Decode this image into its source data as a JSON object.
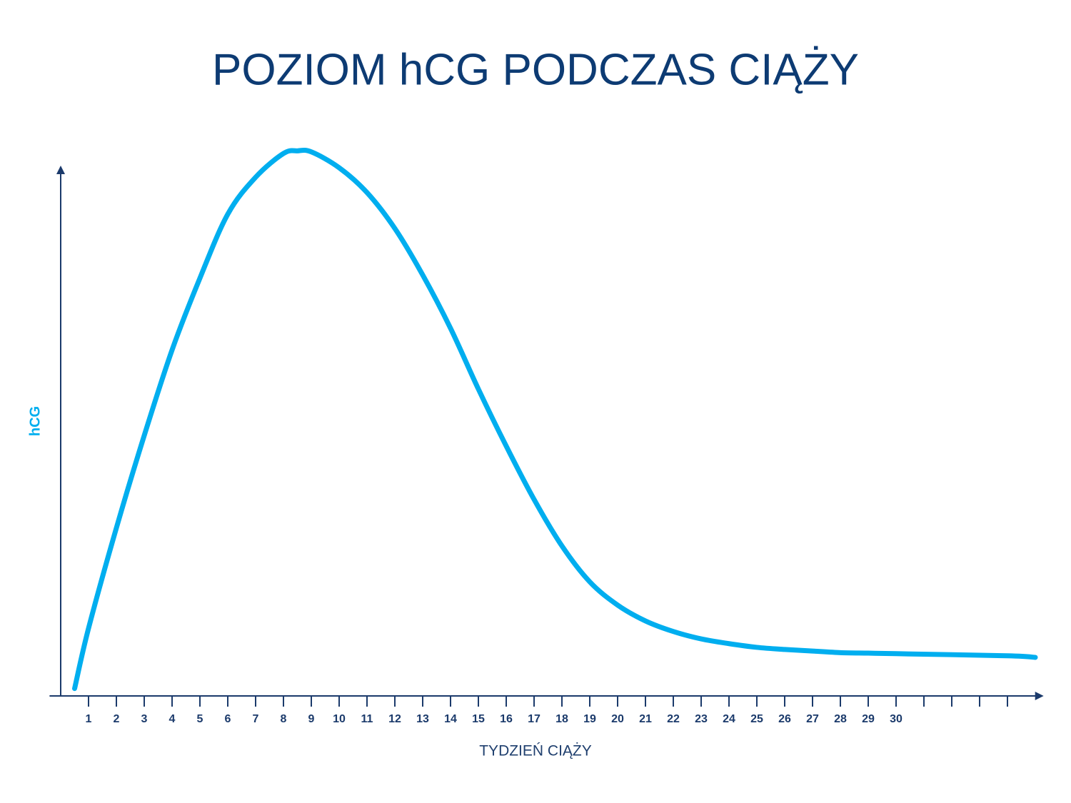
{
  "chart_data": {
    "type": "line",
    "title": "POZIOM hCG PODCZAS CIĄŻY",
    "x_label": "TYDZIEŃ CIĄŻY",
    "y_label": "hCG",
    "x": [
      0.5,
      1,
      2,
      3,
      4,
      5,
      6,
      7,
      8,
      8.5,
      9,
      10,
      11,
      12,
      13,
      14,
      15,
      16,
      17,
      18,
      19,
      20,
      21,
      22,
      23,
      24,
      25,
      26,
      27,
      28,
      29,
      30,
      34,
      35
    ],
    "series": [
      {
        "name": "hCG",
        "color": "#00aeef",
        "values": [
          1.4,
          12.8,
          31.8,
          49.3,
          65.5,
          79.1,
          91.2,
          98.2,
          102.7,
          103.2,
          103,
          100,
          95.3,
          88.5,
          79.7,
          69.6,
          58.1,
          47.3,
          37.2,
          28.4,
          21.6,
          17.2,
          14.2,
          12.2,
          10.8,
          9.9,
          9.2,
          8.8,
          8.5,
          8.2,
          8.1,
          8.0,
          7.6,
          7.3
        ]
      }
    ],
    "xlim": [
      -0.4,
      35.3
    ],
    "ylim": [
      0,
      110
    ],
    "xticks": [
      1,
      2,
      3,
      4,
      5,
      6,
      7,
      8,
      9,
      10,
      11,
      12,
      13,
      14,
      15,
      16,
      17,
      18,
      19,
      20,
      21,
      22,
      23,
      24,
      25,
      26,
      27,
      28,
      29,
      30
    ],
    "unlabeled_xticks": [
      31,
      32,
      33,
      34
    ],
    "axis_color": "#1b3a6b",
    "grid": false
  }
}
